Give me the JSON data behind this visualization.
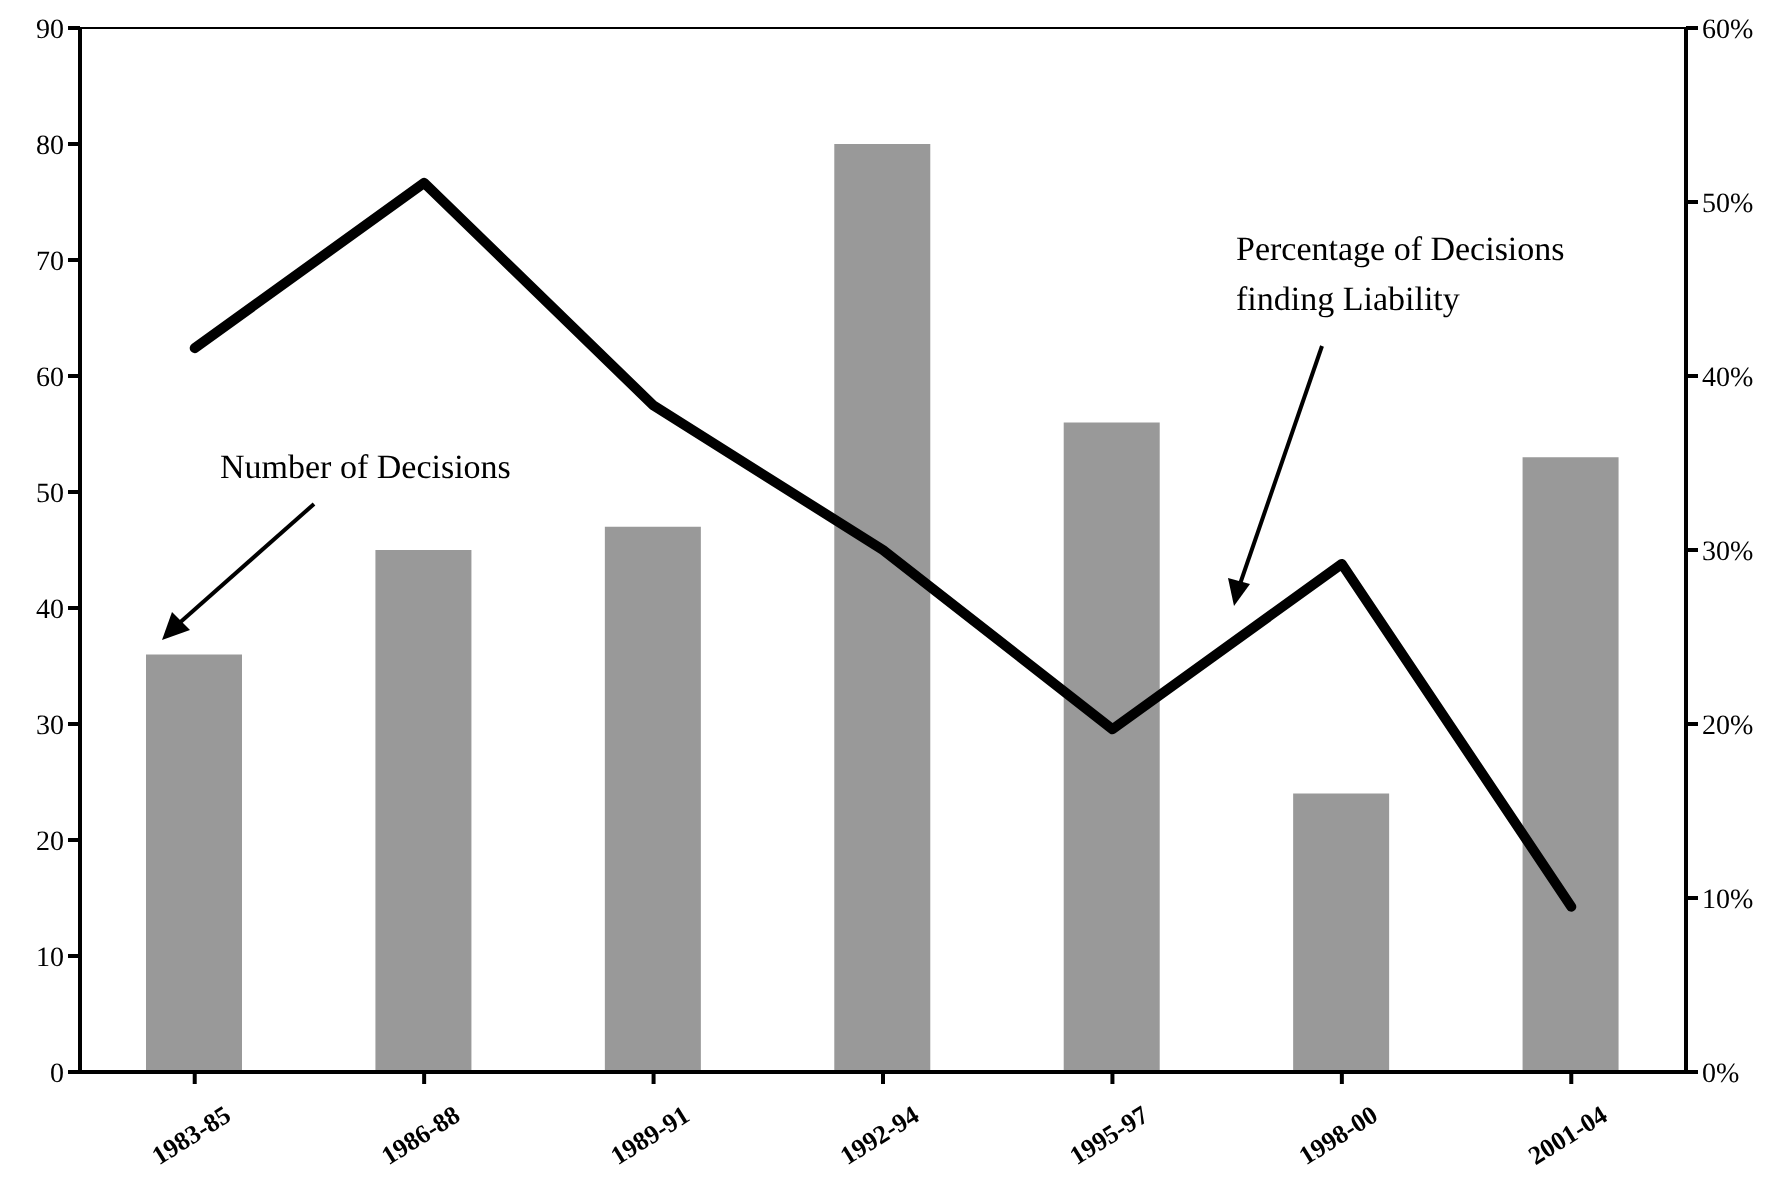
{
  "chart_data": {
    "type": "bar",
    "categories": [
      "1983-85",
      "1986-88",
      "1989-91",
      "1992-94",
      "1995-97",
      "1998-00",
      "2001-04"
    ],
    "series": [
      {
        "color": "#999999",
        "values": [
          36,
          45,
          47,
          80,
          56,
          24,
          53
        ]
      },
      {
        "type": "line",
        "axis": "y2",
        "color": "#000000",
        "values": [
          41.6,
          51.1,
          38.3,
          30,
          19.7,
          29.2,
          9.5
        ]
      }
    ],
    "ylim": [
      0,
      90
    ],
    "yticks": [
      0,
      10,
      20,
      30,
      40,
      50,
      60,
      70,
      80,
      90
    ],
    "y2lim": [
      0,
      60
    ],
    "y2ticks": [
      {
        "value": 0,
        "label": "0%"
      },
      {
        "value": 10,
        "label": "10%"
      },
      {
        "value": 20,
        "label": "20%"
      },
      {
        "value": 30,
        "label": "30%"
      },
      {
        "value": 40,
        "label": "40%"
      },
      {
        "value": 50,
        "label": "50%"
      },
      {
        "value": 60,
        "label": "60%"
      }
    ],
    "annotations": [
      "Number of Decisions",
      "Percentage of Decisions finding Liability"
    ],
    "grid": false,
    "legend": false,
    "marker": "none",
    "line_style": "solid"
  }
}
